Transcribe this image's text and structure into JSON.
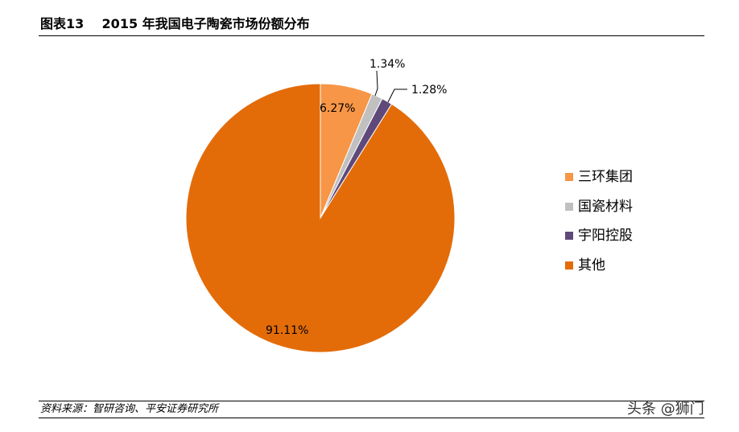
{
  "header": {
    "title": "图表13    2015 年我国电子陶瓷市场份额分布"
  },
  "footer": {
    "source": "资料来源：智研咨询、平安证券研究所",
    "watermark": "头条 @狮门"
  },
  "chart_data": {
    "type": "pie",
    "start_angle": "12 o'clock",
    "direction": "clockwise",
    "legend_position": "right",
    "slices": [
      {
        "name": "三环集团",
        "value": 6.27,
        "label": "6.27%",
        "color": "#F79646"
      },
      {
        "name": "国瓷材料",
        "value": 1.34,
        "label": "1.34%",
        "color": "#C0C0C0"
      },
      {
        "name": "宇阳控股",
        "value": 1.28,
        "label": "1.28%",
        "color": "#5F497A"
      },
      {
        "name": "其他",
        "value": 91.11,
        "label": "91.11%",
        "color": "#E36C09"
      }
    ]
  }
}
